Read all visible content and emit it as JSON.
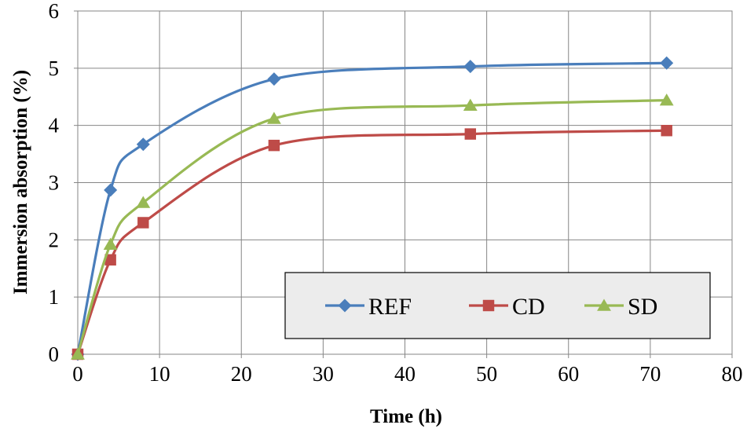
{
  "chart_data": {
    "type": "line",
    "xlabel": "Time (h)",
    "ylabel": "Immersion absorption (%)",
    "xlim": [
      0,
      80
    ],
    "ylim": [
      0,
      6
    ],
    "xticks": [
      0,
      10,
      20,
      30,
      40,
      50,
      60,
      70,
      80
    ],
    "yticks": [
      0,
      1,
      2,
      3,
      4,
      5,
      6
    ],
    "grid": true,
    "smooth": true,
    "legend_position": "bottom-right",
    "series": [
      {
        "name": "REF",
        "color": "#4a7ebb",
        "marker": "diamond",
        "x": [
          0,
          4,
          8,
          24,
          48,
          72
        ],
        "y": [
          0,
          2.87,
          3.67,
          4.81,
          5.03,
          5.09
        ]
      },
      {
        "name": "CD",
        "color": "#be4b48",
        "marker": "square",
        "x": [
          0,
          4,
          8,
          24,
          48,
          72
        ],
        "y": [
          0,
          1.65,
          2.3,
          3.65,
          3.85,
          3.91
        ]
      },
      {
        "name": "SD",
        "color": "#98b954",
        "marker": "triangle",
        "x": [
          0,
          4,
          8,
          24,
          48,
          72
        ],
        "y": [
          0,
          1.92,
          2.65,
          4.12,
          4.35,
          4.44
        ]
      }
    ]
  }
}
